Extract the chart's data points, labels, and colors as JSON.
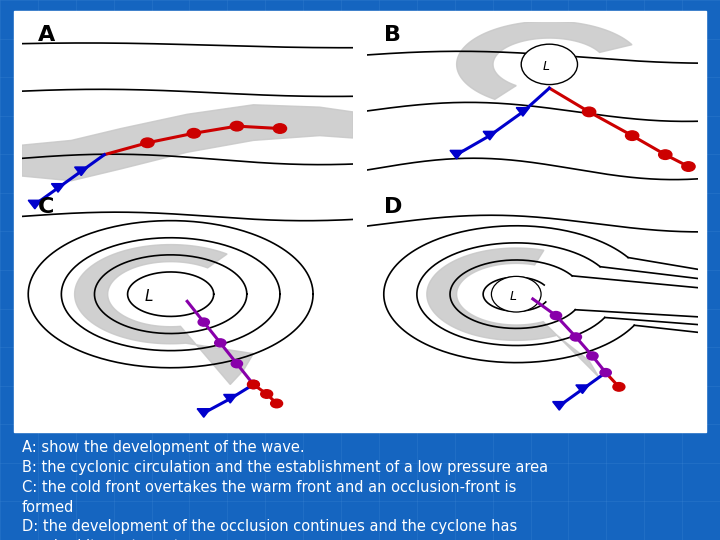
{
  "background_color": "#1565c0",
  "gray_fill": "#c8c8c8",
  "title_A": "A",
  "title_B": "B",
  "title_C": "C",
  "title_D": "D",
  "warm_front_color": "#cc0000",
  "cold_front_color": "#0000cc",
  "occluded_front_color": "#8800aa",
  "isobar_color": "#000000",
  "grid_line_color": "#4488cc",
  "text_content": "A: show the development of the wave.\nB: the cyclonic circulation and the establishment of a low pressure area\nC: the cold front overtakes the warm front and an occlusion-front is\nformed\nD: the development of the occlusion continues and the cyclone has\nreached its mature stage."
}
